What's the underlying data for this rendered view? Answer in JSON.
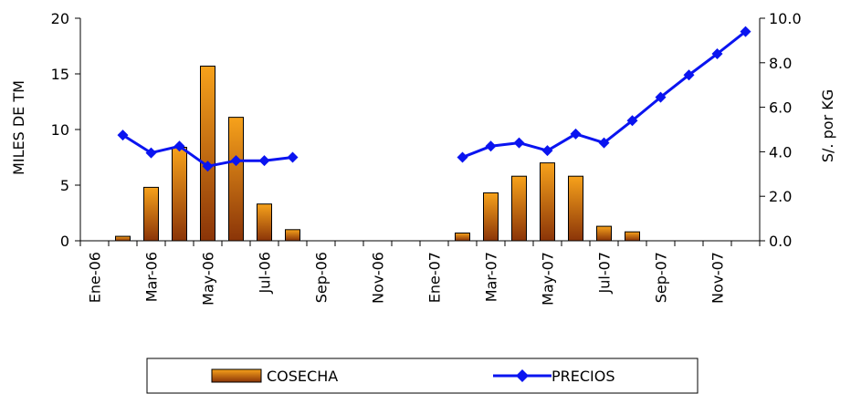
{
  "chart_data": {
    "type": "bar+line",
    "categories": [
      "Ene-06",
      "Feb-06",
      "Mar-06",
      "Abr-06",
      "May-06",
      "Jun-06",
      "Jul-06",
      "Ago-06",
      "Sep-06",
      "Oct-06",
      "Nov-06",
      "Dic-06",
      "Ene-07",
      "Feb-07",
      "Mar-07",
      "Abr-07",
      "May-07",
      "Jun-07",
      "Jul-07",
      "Ago-07",
      "Sep-07",
      "Oct-07",
      "Nov-07",
      "Dic-07"
    ],
    "tick_labels": [
      "Ene-06",
      "Mar-06",
      "May-06",
      "Jul-06",
      "Sep-06",
      "Nov-06",
      "Ene-07",
      "Mar-07",
      "May-07",
      "Jul-07",
      "Sep-07",
      "Nov-07"
    ],
    "series": [
      {
        "name": "COSECHA",
        "type": "bar",
        "axis": "left",
        "color_top": "#f7a21b",
        "color_bottom": "#8a3408",
        "values": [
          null,
          0.4,
          4.8,
          8.4,
          15.7,
          11.1,
          3.3,
          1.0,
          null,
          null,
          null,
          null,
          null,
          0.7,
          4.3,
          5.8,
          7.0,
          5.8,
          1.3,
          0.8,
          null,
          null,
          null,
          null
        ]
      },
      {
        "name": "PRECIOS",
        "type": "line",
        "axis": "right",
        "color": "#0a14f0",
        "values": [
          null,
          4.75,
          3.95,
          4.25,
          3.35,
          3.6,
          3.6,
          3.75,
          null,
          null,
          null,
          null,
          null,
          3.75,
          4.25,
          4.4,
          4.05,
          4.8,
          4.4,
          5.4,
          6.45,
          7.45,
          8.4,
          9.4
        ]
      }
    ],
    "yleft": {
      "label": "MILES DE TM",
      "lim": [
        0,
        20
      ],
      "ticks": [
        0,
        5,
        10,
        15,
        20
      ],
      "tick_labels": [
        "0",
        "5",
        "10",
        "15",
        "20"
      ]
    },
    "yright": {
      "label": "S/. por KG",
      "lim": [
        0,
        10
      ],
      "ticks": [
        0,
        2,
        4,
        6,
        8,
        10
      ],
      "tick_labels": [
        "0.0",
        "2.0",
        "4.0",
        "6.0",
        "8.0",
        "10.0"
      ]
    },
    "grid": false,
    "legend": {
      "placement": "bottom",
      "entries": [
        "COSECHA",
        "PRECIOS"
      ]
    }
  }
}
